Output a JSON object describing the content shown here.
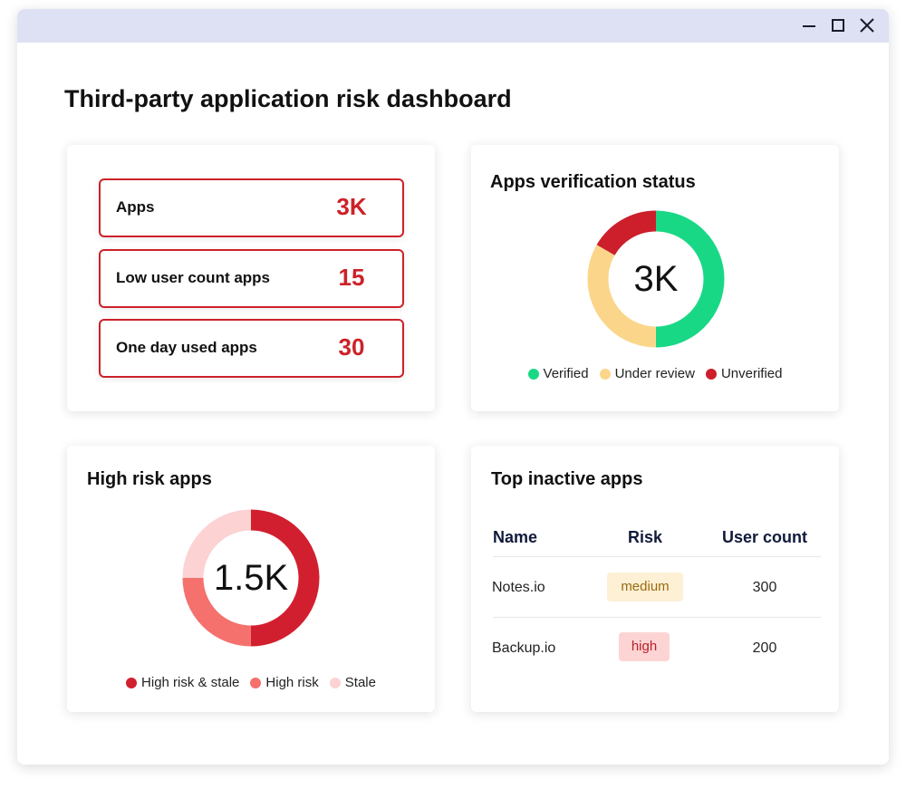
{
  "window": {
    "controls": {
      "minimize_icon": "minimize-icon",
      "maximize_icon": "maximize-icon",
      "close_icon": "close-icon"
    }
  },
  "page": {
    "title": "Third-party application risk dashboard"
  },
  "stats": [
    {
      "label": "Apps",
      "value": "3K"
    },
    {
      "label": "Low user count apps",
      "value": "15"
    },
    {
      "label": "One day used apps",
      "value": "30"
    }
  ],
  "verification": {
    "title": "Apps verification status",
    "total": "3K",
    "segments": [
      {
        "name": "Verified",
        "fraction": 0.5,
        "color": "#19d885"
      },
      {
        "name": "Under review",
        "fraction": 0.333,
        "color": "#fbd68a"
      },
      {
        "name": "Unverified",
        "fraction": 0.167,
        "color": "#cc1f2b"
      }
    ]
  },
  "high_risk": {
    "title": "High risk apps",
    "total": "1.5K",
    "segments": [
      {
        "name": "High risk & stale",
        "fraction": 0.5,
        "color": "#d21f2f"
      },
      {
        "name": "High risk",
        "fraction": 0.25,
        "color": "#f4716e"
      },
      {
        "name": "Stale",
        "fraction": 0.25,
        "color": "#fdd2d2"
      }
    ]
  },
  "inactive": {
    "title": "Top inactive apps",
    "columns": [
      "Name",
      "Risk",
      "User count"
    ],
    "rows": [
      {
        "name": "Notes.io",
        "risk": "medium",
        "users": "300"
      },
      {
        "name": "Backup.io",
        "risk": "high",
        "users": "200"
      }
    ],
    "risk_colors": {
      "medium": {
        "bg": "#fdf0d4",
        "fg": "#9a6a12"
      },
      "high": {
        "bg": "#fdd4d4",
        "fg": "#b8202a"
      }
    }
  }
}
